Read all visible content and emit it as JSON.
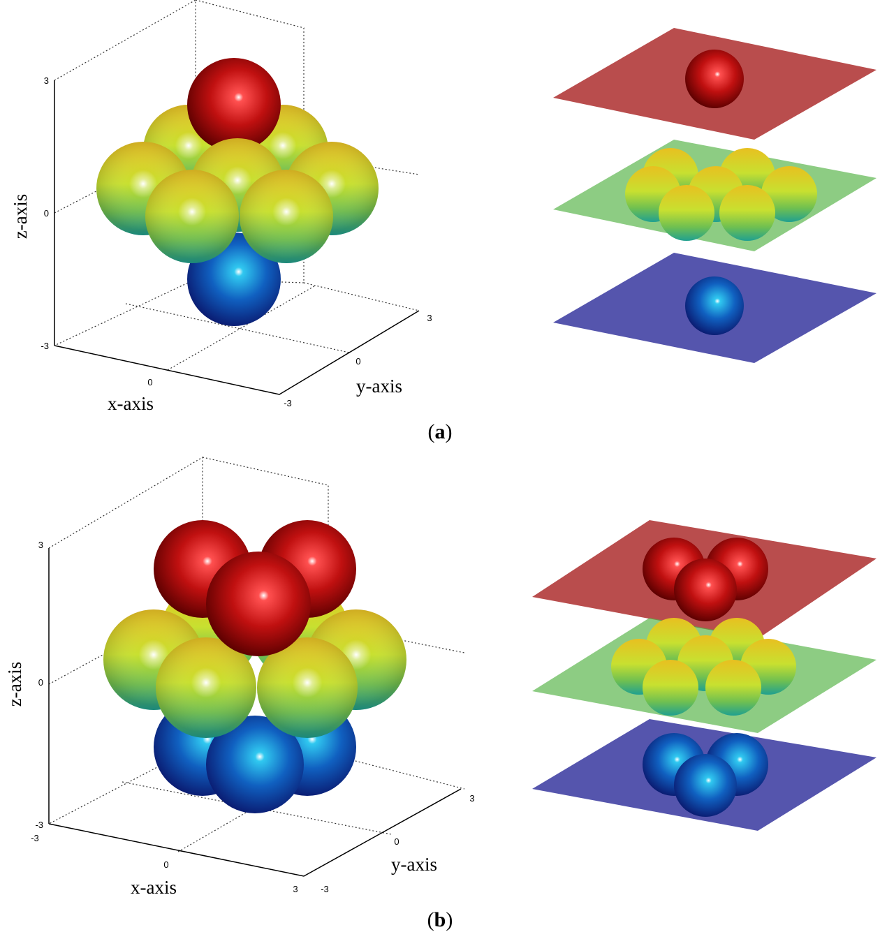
{
  "panels": [
    {
      "label": [
        "(",
        "a",
        ")"
      ],
      "x_axis_label": "x-axis",
      "y_axis_label": "y-axis",
      "z_axis_label": "z-axis",
      "z_ticks": [
        "3",
        "0",
        "-3"
      ],
      "x_ticks": [
        "0"
      ],
      "y_ticks": [
        "3",
        "0",
        "-3"
      ]
    },
    {
      "label": [
        "(",
        "b",
        ")"
      ],
      "x_axis_label": "x-axis",
      "y_axis_label": "y-axis",
      "z_axis_label": "z-axis",
      "z_ticks": [
        "3",
        "0",
        "-3"
      ],
      "x_ticks": [
        "-3",
        "0",
        "3"
      ],
      "y_ticks": [
        "3",
        "0",
        "-3"
      ]
    }
  ]
}
